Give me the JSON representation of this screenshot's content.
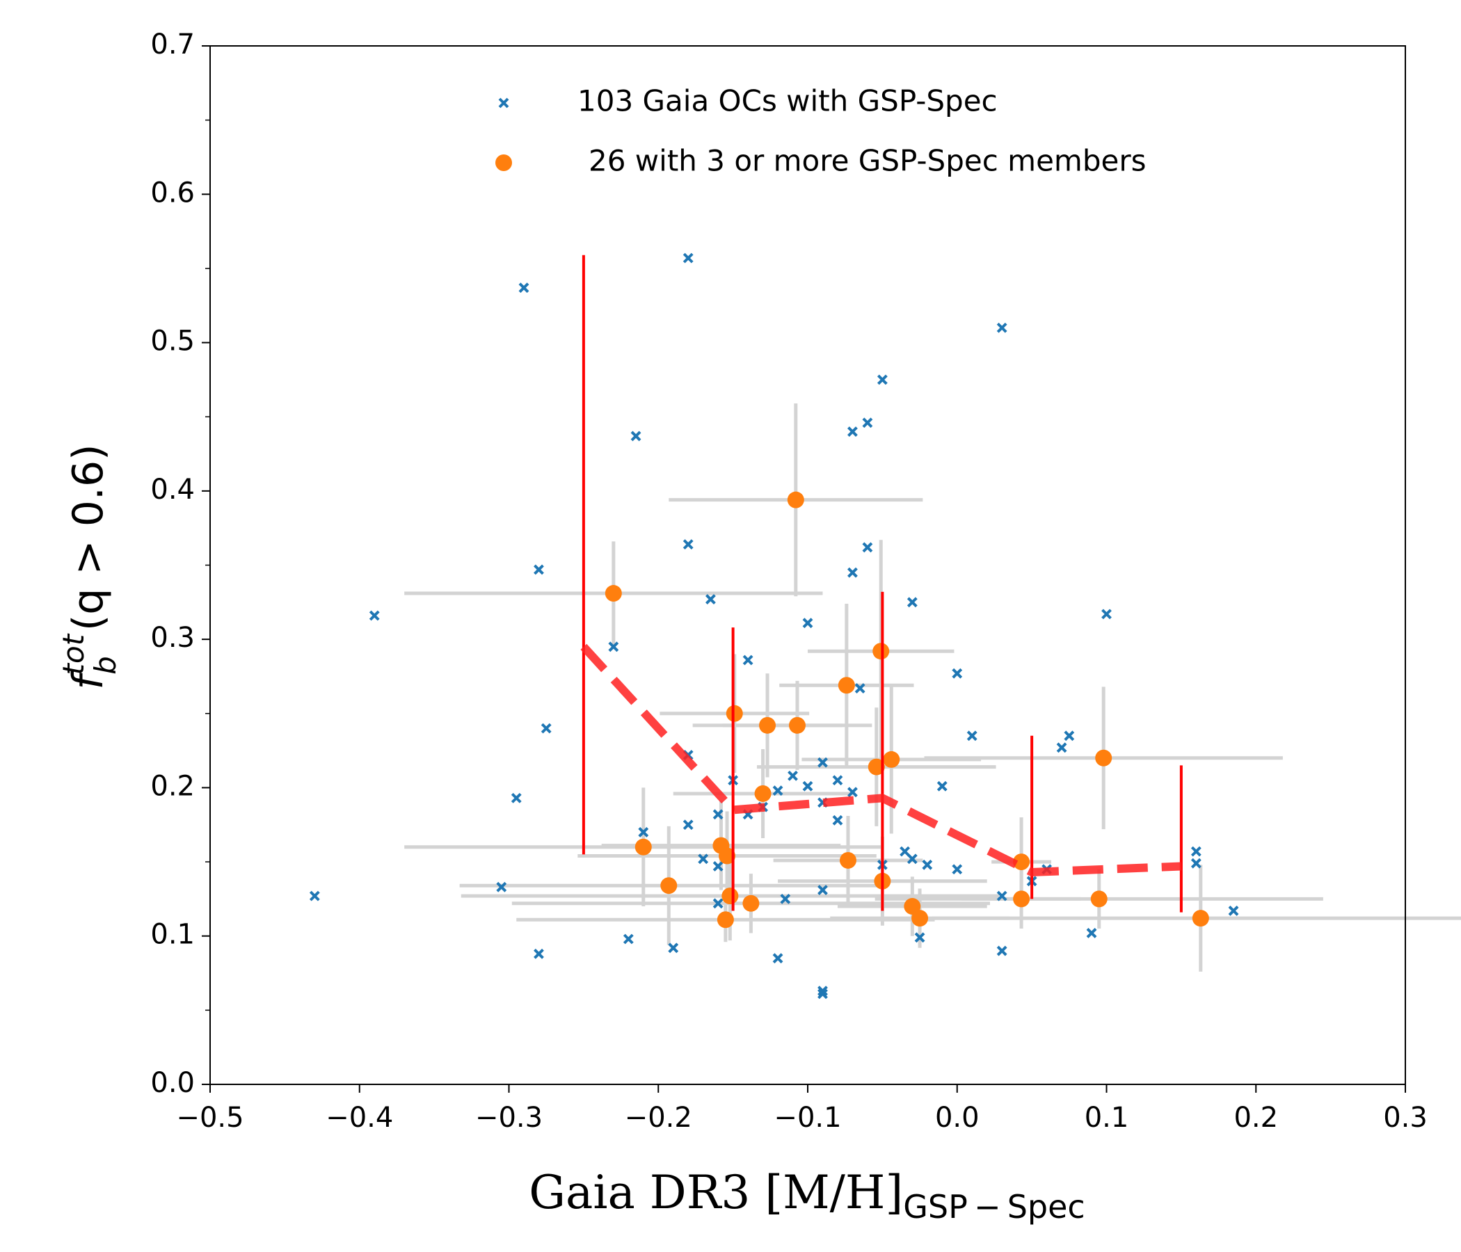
{
  "chart_data": {
    "type": "scatter",
    "xlabel": {
      "main": "Gaia DR3 [M/H]",
      "sub": "GSP − Spec"
    },
    "ylabel": {
      "base": "f",
      "sub": "b",
      "sup": "tot",
      "rest": "(q > 0.6)"
    },
    "xlim": [
      -0.5,
      0.3
    ],
    "ylim": [
      0,
      0.7
    ],
    "xticks": [
      {
        "value": -0.5,
        "label": "−0.5"
      },
      {
        "value": -0.4,
        "label": "−0.4"
      },
      {
        "value": -0.3,
        "label": "−0.3"
      },
      {
        "value": -0.2,
        "label": "−0.2"
      },
      {
        "value": -0.1,
        "label": "−0.1"
      },
      {
        "value": 0,
        "label": "0.0"
      },
      0.1,
      0.2,
      0.3
    ],
    "yticks": [
      {
        "value": 0,
        "label": "0.0"
      },
      0.1,
      0.2,
      0.3,
      0.4,
      0.5,
      0.6,
      0.7
    ],
    "yminor_ticks": [
      0.05,
      0.15,
      0.25,
      0.35,
      0.45,
      0.55,
      0.65
    ],
    "legend": "upper right",
    "series": [
      {
        "name": "103 Gaia OCs with GSP-Spec",
        "color": "#1f77b4",
        "marker": "x",
        "x": [
          -0.43,
          -0.39,
          -0.29,
          -0.275,
          -0.28,
          -0.295,
          -0.305,
          -0.28,
          -0.23,
          -0.215,
          -0.21,
          -0.22,
          -0.19,
          -0.18,
          -0.18,
          -0.18,
          -0.18,
          -0.165,
          -0.17,
          -0.16,
          -0.16,
          -0.16,
          -0.15,
          -0.14,
          -0.14,
          -0.13,
          -0.12,
          -0.12,
          -0.115,
          -0.11,
          -0.1,
          -0.1,
          -0.09,
          -0.09,
          -0.09,
          -0.09,
          -0.09,
          -0.08,
          -0.08,
          -0.07,
          -0.07,
          -0.07,
          -0.065,
          -0.06,
          -0.06,
          -0.05,
          -0.05,
          -0.035,
          -0.03,
          -0.03,
          -0.025,
          -0.02,
          -0.01,
          0,
          0,
          0.01,
          0.03,
          0.03,
          0.03,
          0.05,
          0.06,
          0.07,
          0.075,
          0.09,
          0.1,
          0.16,
          0.16,
          0.185
        ],
        "y": [
          0.127,
          0.316,
          0.537,
          0.24,
          0.347,
          0.193,
          0.133,
          0.088,
          0.295,
          0.437,
          0.17,
          0.098,
          0.092,
          0.557,
          0.364,
          0.222,
          0.175,
          0.327,
          0.152,
          0.182,
          0.147,
          0.122,
          0.205,
          0.286,
          0.182,
          0.187,
          0.198,
          0.085,
          0.125,
          0.208,
          0.311,
          0.201,
          0.217,
          0.19,
          0.131,
          0.063,
          0.061,
          0.205,
          0.178,
          0.44,
          0.345,
          0.197,
          0.267,
          0.446,
          0.362,
          0.475,
          0.148,
          0.157,
          0.325,
          0.152,
          0.099,
          0.148,
          0.201,
          0.277,
          0.145,
          0.235,
          0.51,
          0.127,
          0.09,
          0.137,
          0.145,
          0.227,
          0.235,
          0.102,
          0.317,
          0.157,
          0.149,
          0.117
        ]
      },
      {
        "name": "26 with 3 or more GSP-Spec members",
        "color": "#ff7f0e",
        "marker": "o",
        "errcolor": "#d3d3d3",
        "x": [
          -0.23,
          -0.108,
          -0.051,
          -0.074,
          -0.149,
          -0.127,
          -0.107,
          -0.044,
          -0.054,
          0.098,
          -0.13,
          -0.21,
          -0.158,
          -0.154,
          -0.073,
          0.043,
          -0.05,
          -0.193,
          -0.152,
          0.043,
          0.095,
          -0.138,
          -0.03,
          -0.025,
          -0.155,
          0.163
        ],
        "y": [
          0.331,
          0.394,
          0.292,
          0.269,
          0.25,
          0.242,
          0.242,
          0.219,
          0.214,
          0.22,
          0.196,
          0.16,
          0.161,
          0.154,
          0.151,
          0.15,
          0.137,
          0.134,
          0.127,
          0.125,
          0.125,
          0.122,
          0.12,
          0.112,
          0.111,
          0.112
        ],
        "xerr": [
          0.14,
          0.085,
          0.049,
          0.045,
          0.05,
          0.05,
          0.05,
          0.06,
          0.08,
          0.12,
          0.06,
          0.16,
          0.08,
          0.1,
          0.05,
          0.02,
          0.07,
          0.14,
          0.18,
          0.04,
          0.15,
          0.16,
          0.05,
          0.06,
          0.14,
          0.18
        ],
        "yerr": [
          0.035,
          0.065,
          0.075,
          0.055,
          0.04,
          0.035,
          0.03,
          0.05,
          0.04,
          0.048,
          0.03,
          0.04,
          0.03,
          0.03,
          0.03,
          0.03,
          0.03,
          0.04,
          0.03,
          0.02,
          0.02,
          0.02,
          0.02,
          0.02,
          0.015,
          0.036
        ]
      }
    ],
    "binned": {
      "color": "#ff2020",
      "linestyle": "dashed",
      "x": [
        -0.25,
        -0.15,
        -0.05,
        0.05,
        0.15
      ],
      "y": [
        0.295,
        0.185,
        0.193,
        0.143,
        0.147
      ],
      "lower": [
        0.155,
        0.117,
        0.117,
        0.125,
        0.116
      ],
      "upper": [
        0.559,
        0.308,
        0.332,
        0.235,
        0.215
      ]
    }
  }
}
